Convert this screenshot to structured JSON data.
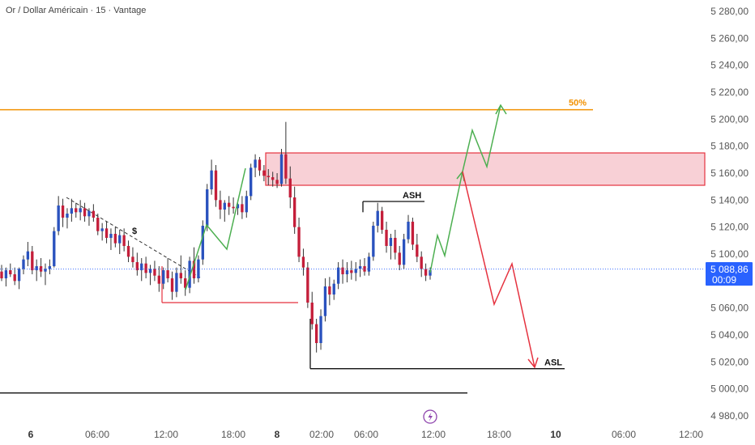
{
  "title": "Or / Dollar Américain · 15 · Vantage",
  "colors": {
    "up": "#2a52be",
    "down": "#c41e3a",
    "wick": "#333333",
    "zone_fill": "#f8d0d6",
    "zone_border": "#e5323f",
    "orange": "#f29100",
    "green": "#4caf50",
    "red": "#e5323f",
    "price_badge": "#2962ff",
    "dotted": "#2962ff"
  },
  "chart_data": {
    "type": "candlestick",
    "symbol": "Or / Dollar Américain",
    "interval": "15",
    "broker": "Vantage",
    "ylim": [
      4975,
      5290
    ],
    "y_ticks": [
      "5 280,00",
      "5 260,00",
      "5 240,00",
      "5 220,00",
      "5 200,00",
      "5 180,00",
      "5 160,00",
      "5 140,00",
      "5 120,00",
      "5 100,00",
      "5 080,00",
      "5 060,00",
      "5 040,00",
      "5 020,00",
      "5 000,00",
      "4 980,00"
    ],
    "y_tick_values": [
      5280,
      5260,
      5240,
      5220,
      5200,
      5180,
      5160,
      5140,
      5120,
      5100,
      5080,
      5060,
      5040,
      5020,
      5000,
      4980
    ],
    "x_ticks": [
      {
        "label": "6",
        "bold": true
      },
      {
        "label": "06:00",
        "bold": false
      },
      {
        "label": "12:00",
        "bold": false
      },
      {
        "label": "18:00",
        "bold": false
      },
      {
        "label": "8",
        "bold": true
      },
      {
        "label": "02:00",
        "bold": false
      },
      {
        "label": "06:00",
        "bold": false
      },
      {
        "label": "12:00",
        "bold": false
      },
      {
        "label": "18:00",
        "bold": false
      },
      {
        "label": "10",
        "bold": true
      },
      {
        "label": "06:00",
        "bold": false
      },
      {
        "label": "12:00",
        "bold": false
      }
    ],
    "current_price": "5 088,86",
    "countdown": "00:09",
    "current_value": 5088.86,
    "levels": [
      {
        "name": "50%",
        "value": 5207
      },
      {
        "name": "ASH",
        "value": 5139
      },
      {
        "name": "ASL",
        "value": 5015
      },
      {
        "name": "",
        "value": 5064
      },
      {
        "name": "",
        "value": 4997
      }
    ],
    "zone": {
      "low": 5151,
      "high": 5175
    },
    "candles": [
      [
        5087,
        5092,
        5080,
        5082
      ],
      [
        5082,
        5090,
        5076,
        5088
      ],
      [
        5088,
        5093,
        5083,
        5085
      ],
      [
        5085,
        5090,
        5077,
        5080
      ],
      [
        5080,
        5090,
        5074,
        5089
      ],
      [
        5089,
        5099,
        5085,
        5096
      ],
      [
        5096,
        5109,
        5091,
        5102
      ],
      [
        5102,
        5106,
        5085,
        5088
      ],
      [
        5088,
        5096,
        5080,
        5091
      ],
      [
        5091,
        5097,
        5083,
        5087
      ],
      [
        5087,
        5093,
        5077,
        5089
      ],
      [
        5089,
        5096,
        5085,
        5091
      ],
      [
        5091,
        5120,
        5090,
        5117
      ],
      [
        5117,
        5143,
        5114,
        5136
      ],
      [
        5136,
        5141,
        5120,
        5127
      ],
      [
        5127,
        5134,
        5119,
        5130
      ],
      [
        5130,
        5141,
        5124,
        5134
      ],
      [
        5134,
        5138,
        5127,
        5131
      ],
      [
        5131,
        5140,
        5125,
        5134
      ],
      [
        5134,
        5138,
        5124,
        5128
      ],
      [
        5128,
        5134,
        5121,
        5132
      ],
      [
        5132,
        5137,
        5124,
        5127
      ],
      [
        5127,
        5130,
        5114,
        5117
      ],
      [
        5117,
        5123,
        5110,
        5119
      ],
      [
        5119,
        5124,
        5108,
        5112
      ],
      [
        5112,
        5119,
        5103,
        5115
      ],
      [
        5115,
        5120,
        5105,
        5108
      ],
      [
        5108,
        5118,
        5100,
        5114
      ],
      [
        5114,
        5119,
        5102,
        5106
      ],
      [
        5106,
        5110,
        5094,
        5098
      ],
      [
        5098,
        5105,
        5090,
        5094
      ],
      [
        5094,
        5101,
        5084,
        5088
      ],
      [
        5088,
        5097,
        5080,
        5093
      ],
      [
        5093,
        5098,
        5082,
        5086
      ],
      [
        5086,
        5092,
        5077,
        5089
      ],
      [
        5089,
        5095,
        5080,
        5084
      ],
      [
        5084,
        5091,
        5072,
        5078
      ],
      [
        5078,
        5090,
        5074,
        5088
      ],
      [
        5088,
        5097,
        5079,
        5082
      ],
      [
        5082,
        5087,
        5066,
        5072
      ],
      [
        5072,
        5090,
        5068,
        5086
      ],
      [
        5086,
        5099,
        5078,
        5082
      ],
      [
        5082,
        5088,
        5069,
        5075
      ],
      [
        5075,
        5098,
        5071,
        5095
      ],
      [
        5095,
        5105,
        5078,
        5082
      ],
      [
        5082,
        5099,
        5079,
        5096
      ],
      [
        5096,
        5125,
        5092,
        5121
      ],
      [
        5121,
        5152,
        5117,
        5148
      ],
      [
        5148,
        5170,
        5144,
        5162
      ],
      [
        5162,
        5166,
        5135,
        5140
      ],
      [
        5140,
        5147,
        5126,
        5133
      ],
      [
        5133,
        5140,
        5124,
        5138
      ],
      [
        5138,
        5143,
        5129,
        5135
      ],
      [
        5135,
        5142,
        5130,
        5134
      ],
      [
        5134,
        5140,
        5129,
        5137
      ],
      [
        5137,
        5143,
        5126,
        5131
      ],
      [
        5131,
        5147,
        5127,
        5143
      ],
      [
        5143,
        5167,
        5140,
        5164
      ],
      [
        5164,
        5174,
        5157,
        5170
      ],
      [
        5170,
        5172,
        5158,
        5162
      ],
      [
        5162,
        5166,
        5154,
        5158
      ],
      [
        5158,
        5163,
        5151,
        5157
      ],
      [
        5157,
        5161,
        5150,
        5155
      ],
      [
        5155,
        5160,
        5149,
        5152
      ],
      [
        5152,
        5178,
        5150,
        5174
      ],
      [
        5174,
        5198,
        5152,
        5156
      ],
      [
        5156,
        5165,
        5134,
        5142
      ],
      [
        5142,
        5150,
        5115,
        5120
      ],
      [
        5120,
        5127,
        5094,
        5098
      ],
      [
        5098,
        5104,
        5084,
        5090
      ],
      [
        5090,
        5094,
        5060,
        5064
      ],
      [
        5064,
        5072,
        5044,
        5048
      ],
      [
        5048,
        5052,
        5027,
        5034
      ],
      [
        5034,
        5059,
        5029,
        5054
      ],
      [
        5054,
        5082,
        5050,
        5076
      ],
      [
        5076,
        5083,
        5062,
        5070
      ],
      [
        5070,
        5081,
        5066,
        5078
      ],
      [
        5078,
        5094,
        5074,
        5090
      ],
      [
        5090,
        5096,
        5078,
        5085
      ],
      [
        5085,
        5094,
        5079,
        5088
      ],
      [
        5088,
        5095,
        5081,
        5086
      ],
      [
        5086,
        5094,
        5080,
        5089
      ],
      [
        5089,
        5096,
        5083,
        5091
      ],
      [
        5091,
        5097,
        5084,
        5087
      ],
      [
        5087,
        5101,
        5084,
        5098
      ],
      [
        5098,
        5124,
        5095,
        5121
      ],
      [
        5121,
        5138,
        5116,
        5132
      ],
      [
        5132,
        5135,
        5115,
        5118
      ],
      [
        5118,
        5124,
        5101,
        5106
      ],
      [
        5106,
        5115,
        5096,
        5112
      ],
      [
        5112,
        5118,
        5096,
        5101
      ],
      [
        5101,
        5106,
        5088,
        5092
      ],
      [
        5092,
        5115,
        5089,
        5111
      ],
      [
        5111,
        5129,
        5108,
        5124
      ],
      [
        5124,
        5127,
        5103,
        5107
      ],
      [
        5107,
        5115,
        5094,
        5098
      ],
      [
        5098,
        5102,
        5083,
        5089
      ],
      [
        5089,
        5093,
        5080,
        5084
      ],
      [
        5084,
        5090,
        5081,
        5088
      ]
    ]
  },
  "annotations": {
    "ash": "ASH",
    "asl": "ASL",
    "fifty": "50%",
    "dollar": "$"
  }
}
